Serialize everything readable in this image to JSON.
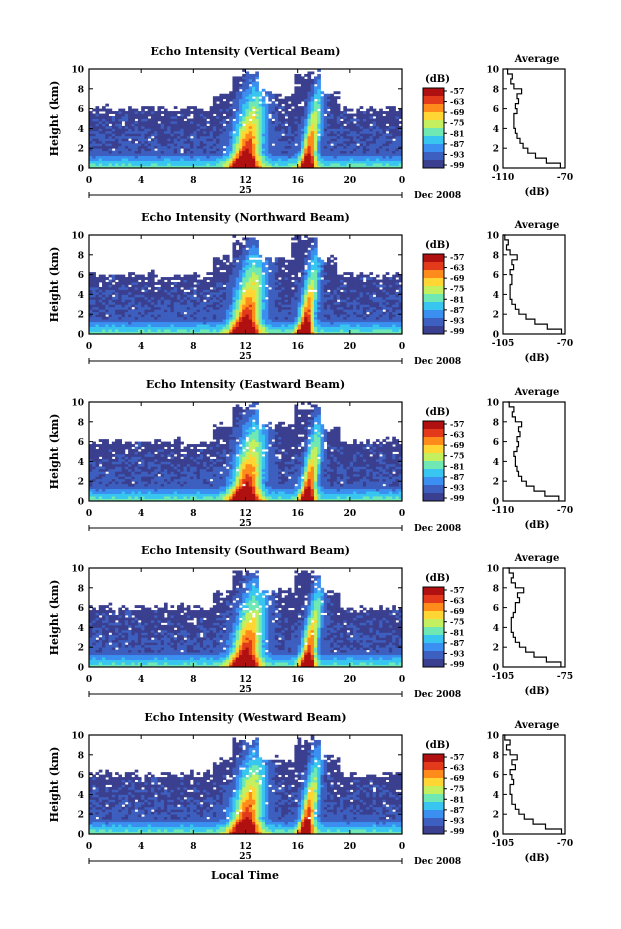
{
  "figure": {
    "bottom_label": "Local Time"
  },
  "chart_data": [
    {
      "type": "heatmap",
      "title": "Echo Intensity (Vertical Beam)",
      "ylabel": "Height (km)",
      "x_ticks": [
        "0",
        "4",
        "8",
        "12",
        "16",
        "20",
        "0"
      ],
      "y_ticks": [
        "0",
        "2",
        "4",
        "6",
        "8",
        "10"
      ],
      "xlim": [
        0,
        24
      ],
      "ylim": [
        0,
        10
      ],
      "date_day": "25",
      "date_label": "Dec 2008",
      "colorbar": {
        "unit": "(dB)",
        "ticks": [
          "-57",
          "-63",
          "-69",
          "-75",
          "-81",
          "-87",
          "-93",
          "-99"
        ]
      },
      "storm_times": [
        12,
        16.8
      ],
      "average_profile": {
        "title": "Average",
        "xlabel": "(dB)",
        "x_ticks": [
          "-110",
          "-70"
        ],
        "xlim": [
          -110,
          -70
        ],
        "y_ticks": [
          "0",
          "2",
          "4",
          "6",
          "8",
          "10"
        ],
        "heights": [
          0,
          0.5,
          1,
          1.5,
          2,
          2.5,
          3,
          3.5,
          4,
          4.5,
          5,
          5.5,
          6,
          6.5,
          7,
          7.5,
          8,
          8.5,
          9,
          9.5,
          10
        ],
        "values": [
          -73,
          -82,
          -89,
          -94,
          -97,
          -99,
          -101,
          -102,
          -103,
          -103,
          -103,
          -101,
          -102,
          -100,
          -101,
          -98,
          -103,
          -105,
          -104,
          -107,
          -108
        ]
      }
    },
    {
      "type": "heatmap",
      "title": "Echo Intensity (Northward Beam)",
      "ylabel": "Height (km)",
      "x_ticks": [
        "0",
        "4",
        "8",
        "12",
        "16",
        "20",
        "0"
      ],
      "y_ticks": [
        "0",
        "2",
        "4",
        "6",
        "8",
        "10"
      ],
      "xlim": [
        0,
        24
      ],
      "ylim": [
        0,
        10
      ],
      "date_day": "25",
      "date_label": "Dec 2008",
      "colorbar": {
        "unit": "(dB)",
        "ticks": [
          "-57",
          "-63",
          "-69",
          "-75",
          "-81",
          "-87",
          "-93",
          "-99"
        ]
      },
      "storm_times": [
        12,
        16.6
      ],
      "average_profile": {
        "title": "Average",
        "xlabel": "(dB)",
        "x_ticks": [
          "-105",
          "-70"
        ],
        "xlim": [
          -105,
          -70
        ],
        "y_ticks": [
          "0",
          "2",
          "4",
          "6",
          "8",
          "10"
        ],
        "heights": [
          0,
          0.5,
          1,
          1.5,
          2,
          2.5,
          3,
          3.5,
          4,
          4.5,
          5,
          5.5,
          6,
          6.5,
          7,
          7.5,
          8,
          8.5,
          9,
          9.5,
          10
        ],
        "values": [
          -72,
          -80,
          -87,
          -92,
          -96,
          -98,
          -100,
          -101,
          -101,
          -101,
          -100,
          -100,
          -101,
          -99,
          -100,
          -97,
          -101,
          -103,
          -102,
          -104,
          -105
        ]
      }
    },
    {
      "type": "heatmap",
      "title": "Echo Intensity (Eastward Beam)",
      "ylabel": "Height (km)",
      "x_ticks": [
        "0",
        "4",
        "8",
        "12",
        "16",
        "20",
        "0"
      ],
      "y_ticks": [
        "0",
        "2",
        "4",
        "6",
        "8",
        "10"
      ],
      "xlim": [
        0,
        24
      ],
      "ylim": [
        0,
        10
      ],
      "date_day": "25",
      "date_label": "Dec 2008",
      "colorbar": {
        "unit": "(dB)",
        "ticks": [
          "-57",
          "-63",
          "-69",
          "-75",
          "-81",
          "-87",
          "-93",
          "-99"
        ]
      },
      "storm_times": [
        12,
        16.8
      ],
      "average_profile": {
        "title": "Average",
        "xlabel": "(dB)",
        "x_ticks": [
          "-110",
          "-70"
        ],
        "xlim": [
          -110,
          -70
        ],
        "y_ticks": [
          "0",
          "2",
          "4",
          "6",
          "8",
          "10"
        ],
        "heights": [
          0,
          0.5,
          1,
          1.5,
          2,
          2.5,
          3,
          3.5,
          4,
          4.5,
          5,
          5.5,
          6,
          6.5,
          7,
          7.5,
          8,
          8.5,
          9,
          9.5,
          10
        ],
        "values": [
          -74,
          -83,
          -90,
          -95,
          -98,
          -100,
          -101,
          -102,
          -102,
          -103,
          -101,
          -100,
          -101,
          -99,
          -100,
          -98,
          -102,
          -104,
          -103,
          -106,
          -107
        ]
      }
    },
    {
      "type": "heatmap",
      "title": "Echo Intensity (Southward Beam)",
      "ylabel": "Height (km)",
      "x_ticks": [
        "0",
        "4",
        "8",
        "12",
        "16",
        "20",
        "0"
      ],
      "y_ticks": [
        "0",
        "2",
        "4",
        "6",
        "8",
        "10"
      ],
      "xlim": [
        0,
        24
      ],
      "ylim": [
        0,
        10
      ],
      "date_day": "25",
      "date_label": "Dec 2008",
      "colorbar": {
        "unit": "(dB)",
        "ticks": [
          "-57",
          "-63",
          "-69",
          "-75",
          "-81",
          "-87",
          "-93",
          "-99"
        ]
      },
      "storm_times": [
        12,
        16.8
      ],
      "average_profile": {
        "title": "Average",
        "xlabel": "(dB)",
        "x_ticks": [
          "-105",
          "-75"
        ],
        "xlim": [
          -105,
          -75
        ],
        "y_ticks": [
          "0",
          "2",
          "4",
          "6",
          "8",
          "10"
        ],
        "heights": [
          0,
          0.5,
          1,
          1.5,
          2,
          2.5,
          3,
          3.5,
          4,
          4.5,
          5,
          5.5,
          6,
          6.5,
          7,
          7.5,
          8,
          8.5,
          9,
          9.5,
          10
        ],
        "values": [
          -77,
          -84,
          -90,
          -94,
          -97,
          -99,
          -100,
          -101,
          -101,
          -101,
          -100,
          -99,
          -99,
          -97,
          -98,
          -95,
          -99,
          -101,
          -100,
          -102,
          -103
        ]
      }
    },
    {
      "type": "heatmap",
      "title": "Echo Intensity (Westward Beam)",
      "ylabel": "Height (km)",
      "x_ticks": [
        "0",
        "4",
        "8",
        "12",
        "16",
        "20",
        "0"
      ],
      "y_ticks": [
        "0",
        "2",
        "4",
        "6",
        "8",
        "10"
      ],
      "xlim": [
        0,
        24
      ],
      "ylim": [
        0,
        10
      ],
      "date_day": "25",
      "date_label": "Dec 2008",
      "colorbar": {
        "unit": "(dB)",
        "ticks": [
          "-57",
          "-63",
          "-69",
          "-75",
          "-81",
          "-87",
          "-93",
          "-99"
        ]
      },
      "storm_times": [
        12,
        16.7
      ],
      "average_profile": {
        "title": "Average",
        "xlabel": "(dB)",
        "x_ticks": [
          "-105",
          "-70"
        ],
        "xlim": [
          -105,
          -70
        ],
        "y_ticks": [
          "0",
          "2",
          "4",
          "6",
          "8",
          "10"
        ],
        "heights": [
          0,
          0.5,
          1,
          1.5,
          2,
          2.5,
          3,
          3.5,
          4,
          4.5,
          5,
          5.5,
          6,
          6.5,
          7,
          7.5,
          8,
          8.5,
          9,
          9.5,
          10
        ],
        "values": [
          -72,
          -81,
          -88,
          -93,
          -96,
          -98,
          -100,
          -100,
          -101,
          -101,
          -99,
          -100,
          -101,
          -98,
          -100,
          -97,
          -101,
          -103,
          -101,
          -104,
          -105
        ]
      }
    }
  ]
}
